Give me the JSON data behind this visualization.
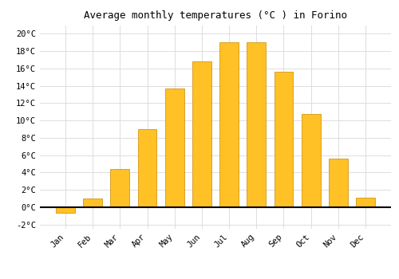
{
  "title": "Average monthly temperatures (°C ) in Forino",
  "months": [
    "Jan",
    "Feb",
    "Mar",
    "Apr",
    "May",
    "Jun",
    "Jul",
    "Aug",
    "Sep",
    "Oct",
    "Nov",
    "Dec"
  ],
  "temperatures": [
    -0.7,
    1.0,
    4.4,
    9.0,
    13.7,
    16.8,
    19.0,
    19.0,
    15.6,
    10.7,
    5.6,
    1.1
  ],
  "bar_color": "#FFC125",
  "bar_edge_color": "#CC8800",
  "background_color": "#FFFFFF",
  "grid_color": "#DDDDDD",
  "ylim": [
    -2.5,
    21
  ],
  "yticks": [
    -2,
    0,
    2,
    4,
    6,
    8,
    10,
    12,
    14,
    16,
    18,
    20
  ],
  "title_fontsize": 9,
  "tick_fontsize": 7.5,
  "font_family": "monospace"
}
